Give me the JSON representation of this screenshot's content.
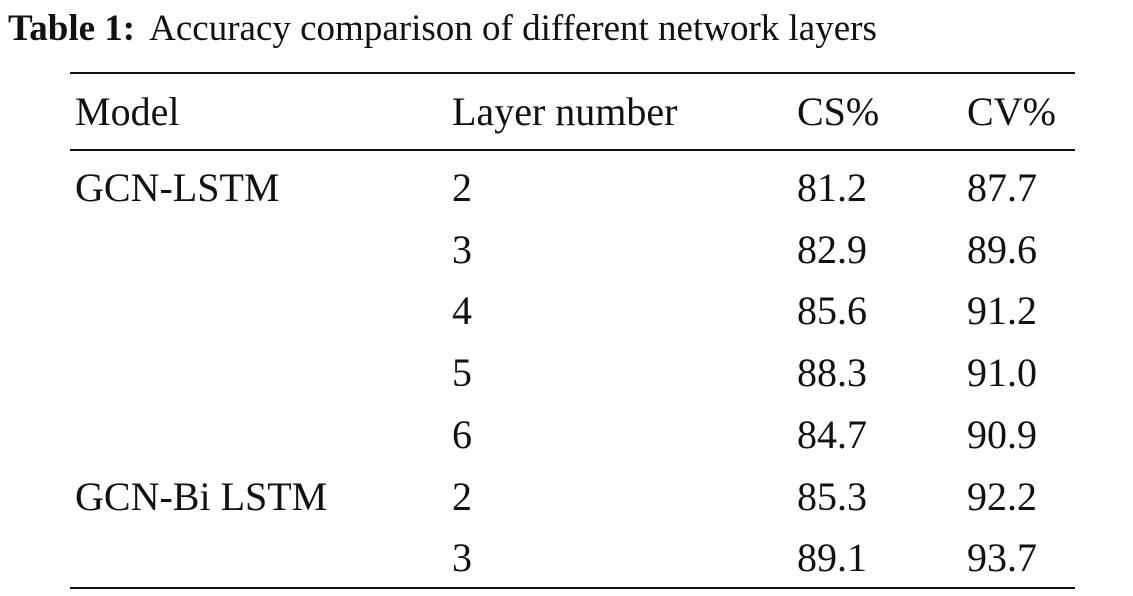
{
  "caption": {
    "label": "Table 1:",
    "text": "Accuracy comparison of different network layers"
  },
  "table": {
    "header": [
      "Model",
      "Layer number",
      "CS%",
      "CV%"
    ],
    "groups": [
      {
        "model": "GCN-LSTM",
        "rows": [
          [
            "2",
            "81.2",
            "87.7"
          ],
          [
            "3",
            "82.9",
            "89.6"
          ],
          [
            "4",
            "85.6",
            "91.2"
          ],
          [
            "5",
            "88.3",
            "91.0"
          ],
          [
            "6",
            "84.7",
            "90.9"
          ]
        ]
      },
      {
        "model": "GCN-Bi LSTM",
        "rows": [
          [
            "2",
            "85.3",
            "92.2"
          ],
          [
            "3",
            "89.1",
            "93.7"
          ]
        ]
      }
    ]
  }
}
